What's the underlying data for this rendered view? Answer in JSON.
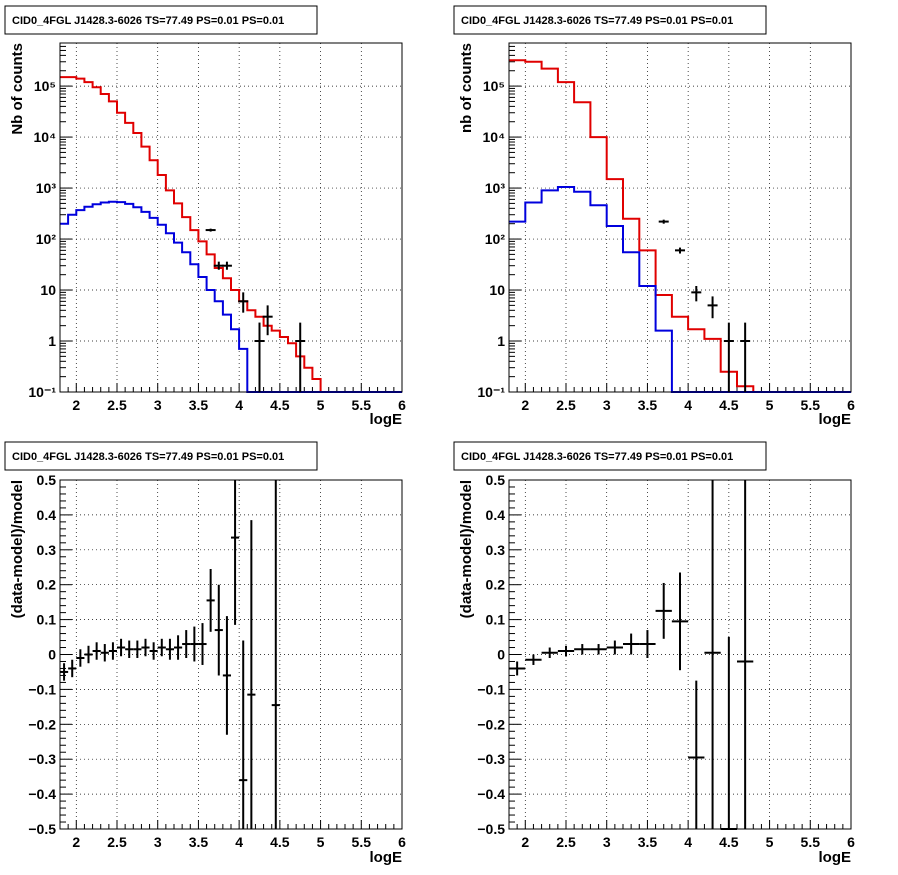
{
  "chart_data": [
    {
      "type": "line",
      "title": "CID0_4FGL J1428.3-6026 TS=77.49 PS=0.01 PS=0.01",
      "xlabel": "logE",
      "ylabel": "Nb of counts",
      "xlim": [
        1.8,
        6.0
      ],
      "ylim": [
        0.1,
        700000
      ],
      "log_y": true,
      "grid": true,
      "x_ticks": [
        2,
        2.5,
        3,
        3.5,
        4,
        4.5,
        5,
        5.5,
        6
      ],
      "x_tick_labels": [
        "2",
        "2.5",
        "3",
        "3.5",
        "4",
        "4.5",
        "5",
        "5.5",
        "6"
      ],
      "y_ticks": [
        0.1,
        1,
        10,
        100,
        1000,
        10000,
        100000
      ],
      "y_tick_labels": [
        "10⁻¹",
        "1",
        "10",
        "10²",
        "10³",
        "10⁴",
        "10⁵"
      ],
      "bin_edges": [
        1.8,
        1.9,
        2.0,
        2.1,
        2.2,
        2.3,
        2.4,
        2.5,
        2.6,
        2.7,
        2.8,
        2.9,
        3.0,
        3.1,
        3.2,
        3.3,
        3.4,
        3.5,
        3.6,
        3.7,
        3.8,
        3.9,
        4.0,
        4.1,
        4.2,
        4.3,
        4.4,
        4.5,
        4.6,
        4.7,
        4.8,
        4.9,
        5.0,
        5.1,
        5.2,
        5.3,
        5.4,
        5.5,
        5.6,
        5.7,
        5.8,
        5.9,
        6.0
      ],
      "series": [
        {
          "color": "#e00000",
          "style": "step",
          "values": [
            150000,
            150000,
            140000,
            120000,
            95000,
            70000,
            50000,
            30000,
            19000,
            12000,
            6500,
            3500,
            1800,
            900,
            500,
            270,
            150,
            90,
            50,
            27,
            17,
            10,
            6,
            4,
            3,
            2,
            1.6,
            1.2,
            0.9,
            0.5,
            0.3,
            0.18,
            0.1,
            0.1,
            0.1,
            0.1,
            0.1,
            0.1,
            0.1,
            0.1,
            0.1,
            0.1
          ]
        },
        {
          "color": "#0000dd",
          "style": "step",
          "values": [
            200,
            300,
            370,
            430,
            480,
            520,
            540,
            530,
            490,
            420,
            340,
            260,
            190,
            130,
            85,
            55,
            32,
            18,
            10,
            6,
            3.3,
            1.7,
            0.7,
            0.1,
            0.1,
            0.1,
            0.1,
            0.1,
            0.1,
            0.1,
            0.1,
            0.1,
            0.1,
            0.1,
            0.1,
            0.1,
            0.1,
            0.1,
            0.1,
            0.1,
            0.1,
            0.1
          ]
        },
        {
          "color": "#000000",
          "style": "points",
          "points": [
            {
              "x": 3.65,
              "y": 150,
              "ylo": 140,
              "yhi": 160
            },
            {
              "x": 3.75,
              "y": 30,
              "ylo": 25,
              "yhi": 36
            },
            {
              "x": 3.85,
              "y": 30,
              "ylo": 25,
              "yhi": 36
            },
            {
              "x": 4.05,
              "y": 6,
              "ylo": 3.6,
              "yhi": 9
            },
            {
              "x": 4.25,
              "y": 1,
              "ylo": 0.1,
              "yhi": 2.3
            },
            {
              "x": 4.35,
              "y": 3,
              "ylo": 1.3,
              "yhi": 5
            },
            {
              "x": 4.75,
              "y": 1,
              "ylo": 0.1,
              "yhi": 2.3
            }
          ]
        }
      ]
    },
    {
      "type": "line",
      "title": "CID0_4FGL J1428.3-6026 TS=77.49 PS=0.01 PS=0.01",
      "xlabel": "logE",
      "ylabel": "nb of counts",
      "xlim": [
        1.8,
        6.0
      ],
      "ylim": [
        0.1,
        700000
      ],
      "log_y": true,
      "grid": true,
      "x_ticks": [
        2,
        2.5,
        3,
        3.5,
        4,
        4.5,
        5,
        5.5,
        6
      ],
      "x_tick_labels": [
        "2",
        "2.5",
        "3",
        "3.5",
        "4",
        "4.5",
        "5",
        "5.5",
        "6"
      ],
      "y_ticks": [
        0.1,
        1,
        10,
        100,
        1000,
        10000,
        100000
      ],
      "y_tick_labels": [
        "10⁻¹",
        "1",
        "10",
        "10²",
        "10³",
        "10⁴",
        "10⁵"
      ],
      "bin_edges": [
        1.8,
        2.0,
        2.2,
        2.4,
        2.6,
        2.8,
        3.0,
        3.2,
        3.4,
        3.6,
        3.8,
        4.0,
        4.2,
        4.4,
        4.6,
        4.8,
        5.0,
        5.2,
        5.4,
        5.6,
        5.8,
        6.0
      ],
      "series": [
        {
          "color": "#e00000",
          "style": "step",
          "values": [
            320000,
            300000,
            220000,
            120000,
            48000,
            10000,
            1500,
            250,
            60,
            8,
            3,
            1.7,
            1.1,
            0.25,
            0.13,
            0.1,
            0.1,
            0.1,
            0.1,
            0.1,
            0.1
          ]
        },
        {
          "color": "#0000dd",
          "style": "step",
          "values": [
            220,
            520,
            900,
            1050,
            850,
            460,
            180,
            55,
            12,
            1.6,
            0.1,
            0.1,
            0.1,
            0.1,
            0.1,
            0.1,
            0.1,
            0.1,
            0.1,
            0.1,
            0.1
          ]
        },
        {
          "color": "#000000",
          "style": "points",
          "points": [
            {
              "x": 3.7,
              "y": 220,
              "ylo": 200,
              "yhi": 240
            },
            {
              "x": 3.9,
              "y": 60,
              "ylo": 52,
              "yhi": 68
            },
            {
              "x": 4.1,
              "y": 9,
              "ylo": 6,
              "yhi": 12
            },
            {
              "x": 4.3,
              "y": 5,
              "ylo": 2.8,
              "yhi": 7.5
            },
            {
              "x": 4.5,
              "y": 1,
              "ylo": 0.1,
              "yhi": 2.3
            },
            {
              "x": 4.7,
              "y": 1,
              "ylo": 0.1,
              "yhi": 2.3
            }
          ]
        }
      ]
    },
    {
      "type": "scatter",
      "title": "CID0_4FGL J1428.3-6026 TS=77.49 PS=0.01 PS=0.01",
      "xlabel": "logE",
      "ylabel": "(data-model)/model",
      "xlim": [
        1.8,
        6.0
      ],
      "ylim": [
        -0.5,
        0.5
      ],
      "log_y": false,
      "grid": true,
      "x_ticks": [
        2,
        2.5,
        3,
        3.5,
        4,
        4.5,
        5,
        5.5,
        6
      ],
      "x_tick_labels": [
        "2",
        "2.5",
        "3",
        "3.5",
        "4",
        "4.5",
        "5",
        "5.5",
        "6"
      ],
      "y_ticks": [
        -0.5,
        -0.4,
        -0.3,
        -0.2,
        -0.1,
        0,
        0.1,
        0.2,
        0.3,
        0.4,
        0.5
      ],
      "y_tick_labels": [
        "−0.5",
        "−0.4",
        "−0.3",
        "−0.2",
        "−0.1",
        "0",
        "0.1",
        "0.2",
        "0.3",
        "0.4",
        "0.5"
      ],
      "series": [
        {
          "color": "#000000",
          "xerr": 0.05,
          "points": [
            {
              "x": 1.85,
              "y": -0.05,
              "err": 0.025
            },
            {
              "x": 1.95,
              "y": -0.04,
              "err": 0.025
            },
            {
              "x": 2.05,
              "y": -0.01,
              "err": 0.025
            },
            {
              "x": 2.15,
              "y": 0.0,
              "err": 0.025
            },
            {
              "x": 2.25,
              "y": 0.01,
              "err": 0.025
            },
            {
              "x": 2.35,
              "y": 0.005,
              "err": 0.025
            },
            {
              "x": 2.45,
              "y": 0.01,
              "err": 0.025
            },
            {
              "x": 2.55,
              "y": 0.02,
              "err": 0.025
            },
            {
              "x": 2.65,
              "y": 0.015,
              "err": 0.025
            },
            {
              "x": 2.75,
              "y": 0.015,
              "err": 0.025
            },
            {
              "x": 2.85,
              "y": 0.02,
              "err": 0.025
            },
            {
              "x": 2.95,
              "y": 0.01,
              "err": 0.025
            },
            {
              "x": 3.05,
              "y": 0.02,
              "err": 0.025
            },
            {
              "x": 3.15,
              "y": 0.015,
              "err": 0.03
            },
            {
              "x": 3.25,
              "y": 0.02,
              "err": 0.035
            },
            {
              "x": 3.35,
              "y": 0.03,
              "err": 0.04
            },
            {
              "x": 3.45,
              "y": 0.03,
              "err": 0.05
            },
            {
              "x": 3.55,
              "y": 0.03,
              "err": 0.06
            },
            {
              "x": 3.65,
              "y": 0.155,
              "err": 0.09
            },
            {
              "x": 3.75,
              "y": 0.07,
              "err": 0.13
            },
            {
              "x": 3.85,
              "y": -0.06,
              "err": 0.17
            },
            {
              "x": 3.95,
              "y": 0.335,
              "err": 0.25
            },
            {
              "x": 4.05,
              "y": -0.36,
              "err": 0.4
            },
            {
              "x": 4.15,
              "y": -0.115,
              "err": 0.5
            },
            {
              "x": 4.45,
              "y": -0.145,
              "err": 0.9
            }
          ]
        }
      ]
    },
    {
      "type": "scatter",
      "title": "CID0_4FGL J1428.3-6026 TS=77.49 PS=0.01 PS=0.01",
      "xlabel": "logE",
      "ylabel": "(data-model)/model",
      "xlim": [
        1.8,
        6.0
      ],
      "ylim": [
        -0.5,
        0.5
      ],
      "log_y": false,
      "grid": true,
      "x_ticks": [
        2,
        2.5,
        3,
        3.5,
        4,
        4.5,
        5,
        5.5,
        6
      ],
      "x_tick_labels": [
        "2",
        "2.5",
        "3",
        "3.5",
        "4",
        "4.5",
        "5",
        "5.5",
        "6"
      ],
      "y_ticks": [
        -0.5,
        -0.4,
        -0.3,
        -0.2,
        -0.1,
        0,
        0.1,
        0.2,
        0.3,
        0.4,
        0.5
      ],
      "y_tick_labels": [
        "−0.5",
        "−0.4",
        "−0.3",
        "−0.2",
        "−0.1",
        "0",
        "0.1",
        "0.2",
        "0.3",
        "0.4",
        "0.5"
      ],
      "series": [
        {
          "color": "#000000",
          "xerr": 0.1,
          "points": [
            {
              "x": 1.9,
              "y": -0.04,
              "err": 0.02
            },
            {
              "x": 2.1,
              "y": -0.015,
              "err": 0.015
            },
            {
              "x": 2.3,
              "y": 0.005,
              "err": 0.015
            },
            {
              "x": 2.5,
              "y": 0.01,
              "err": 0.015
            },
            {
              "x": 2.7,
              "y": 0.015,
              "err": 0.015
            },
            {
              "x": 2.9,
              "y": 0.015,
              "err": 0.015
            },
            {
              "x": 3.1,
              "y": 0.02,
              "err": 0.02
            },
            {
              "x": 3.3,
              "y": 0.03,
              "err": 0.03
            },
            {
              "x": 3.5,
              "y": 0.03,
              "err": 0.04
            },
            {
              "x": 3.7,
              "y": 0.125,
              "err": 0.08
            },
            {
              "x": 3.9,
              "y": 0.095,
              "err": 0.14
            },
            {
              "x": 4.1,
              "y": -0.295,
              "err": 0.22
            },
            {
              "x": 4.3,
              "y": 0.005,
              "err": 0.55
            },
            {
              "x": 4.5,
              "y": -0.5,
              "err": 0.55
            },
            {
              "x": 4.7,
              "y": -0.02,
              "err": 0.55
            }
          ]
        }
      ]
    }
  ]
}
